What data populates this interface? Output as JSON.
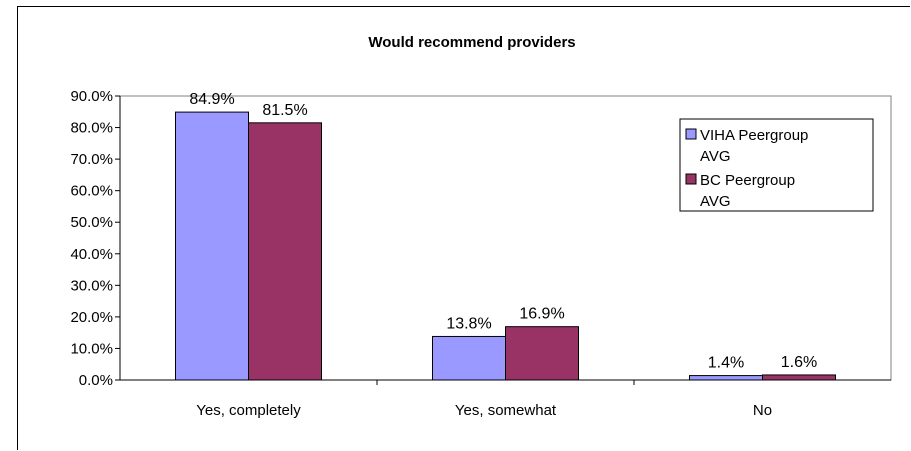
{
  "chart_data": {
    "type": "bar",
    "title": "Would recommend providers",
    "categories": [
      "Yes, completely",
      "Yes, somewhat",
      "No"
    ],
    "series": [
      {
        "name": "VIHA Peergroup AVG",
        "color": "#9999FF",
        "values": [
          84.9,
          13.8,
          1.4
        ],
        "labels": [
          "84.9%",
          "13.8%",
          "1.4%"
        ]
      },
      {
        "name": "BC Peergroup AVG",
        "color": "#993366",
        "values": [
          81.5,
          16.9,
          1.6
        ],
        "labels": [
          "81.5%",
          "16.9%",
          "1.6%"
        ]
      }
    ],
    "ylim": [
      0,
      90
    ],
    "yticks": [
      "0.0%",
      "10.0%",
      "20.0%",
      "30.0%",
      "40.0%",
      "50.0%",
      "60.0%",
      "70.0%",
      "80.0%",
      "90.0%"
    ],
    "legend_position": "right",
    "legend_lines": [
      [
        "VIHA Peergroup",
        "AVG"
      ],
      [
        "BC Peergroup",
        "AVG"
      ]
    ],
    "plot_background": "#ffffff",
    "grid": false
  }
}
